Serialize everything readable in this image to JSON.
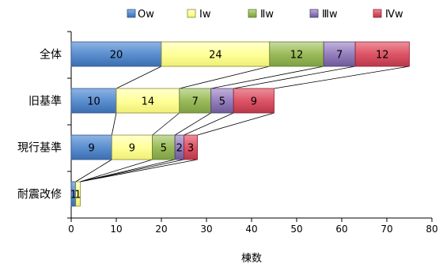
{
  "chart_data": {
    "type": "bar",
    "orientation": "horizontal",
    "stacked": true,
    "categories": [
      "全体",
      "旧基準",
      "現行基準",
      "耐震改修"
    ],
    "series": [
      {
        "name": "Ow",
        "values": [
          20,
          10,
          9,
          1
        ],
        "color": "#4f81bd"
      },
      {
        "name": "Ⅰw",
        "values": [
          24,
          14,
          9,
          1
        ],
        "color": "#ffff99"
      },
      {
        "name": "Ⅱw",
        "values": [
          12,
          7,
          5,
          0
        ],
        "color": "#9bbb59"
      },
      {
        "name": "Ⅲw",
        "values": [
          7,
          5,
          2,
          0
        ],
        "color": "#8064a2"
      },
      {
        "name": "Ⅳw",
        "values": [
          12,
          9,
          3,
          0
        ],
        "color": "#c0504d"
      }
    ],
    "xlabel": "棟数",
    "xlim": [
      0,
      80
    ],
    "xticks": [
      0,
      10,
      20,
      30,
      40,
      50,
      60,
      70,
      80
    ],
    "legend_position": "top",
    "series_lines": true,
    "grid": false
  }
}
